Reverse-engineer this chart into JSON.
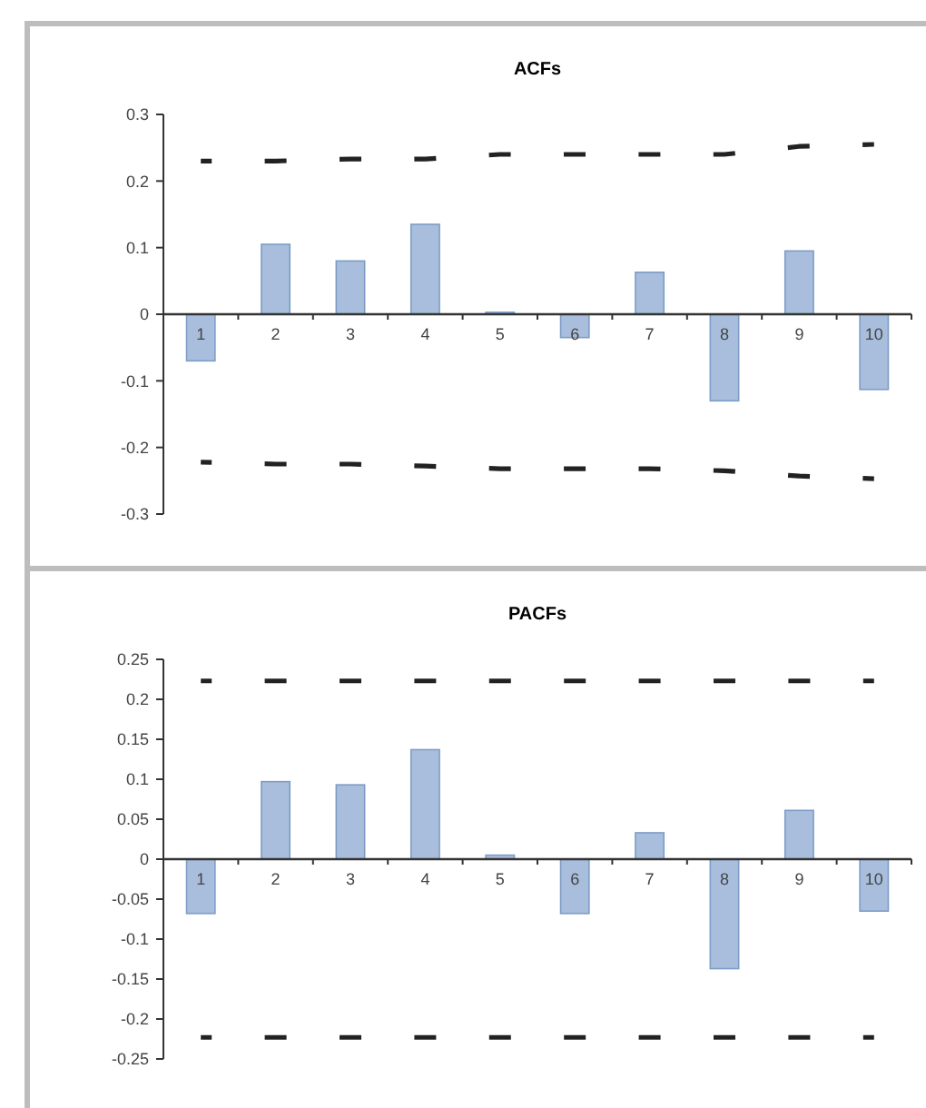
{
  "chart_data": [
    {
      "type": "bar",
      "title": "ACFs",
      "categories": [
        "1",
        "2",
        "3",
        "4",
        "5",
        "6",
        "7",
        "8",
        "9",
        "10"
      ],
      "series": [
        {
          "color": "#a8bedc",
          "values": [
            -0.07,
            0.105,
            0.08,
            0.135,
            0.003,
            -0.035,
            0.063,
            -0.13,
            0.095,
            -0.113
          ]
        },
        {
          "type": "line",
          "line_style": "dashed",
          "marker": "none",
          "color": "#222222",
          "values": [
            0.23,
            0.23,
            0.233,
            0.233,
            0.24,
            0.24,
            0.24,
            0.24,
            0.252,
            0.255
          ]
        },
        {
          "type": "line",
          "line_style": "dashed",
          "marker": "none",
          "color": "#222222",
          "values": [
            -0.222,
            -0.225,
            -0.225,
            -0.228,
            -0.232,
            -0.232,
            -0.232,
            -0.235,
            -0.243,
            -0.247
          ]
        }
      ],
      "ylim": [
        -0.3,
        0.3
      ],
      "yticks": [
        -0.3,
        -0.2,
        -0.1,
        0,
        0.1,
        0.2,
        0.3
      ],
      "grid": false
    },
    {
      "type": "bar",
      "title": "PACFs",
      "categories": [
        "1",
        "2",
        "3",
        "4",
        "5",
        "6",
        "7",
        "8",
        "9",
        "10"
      ],
      "series": [
        {
          "color": "#a8bedc",
          "values": [
            -0.068,
            0.097,
            0.093,
            0.137,
            0.005,
            -0.068,
            0.033,
            -0.137,
            0.061,
            -0.065
          ]
        },
        {
          "type": "line",
          "line_style": "dashed",
          "marker": "none",
          "color": "#222222",
          "values": [
            0.223,
            0.223,
            0.223,
            0.223,
            0.223,
            0.223,
            0.223,
            0.223,
            0.223,
            0.223
          ]
        },
        {
          "type": "line",
          "line_style": "dashed",
          "marker": "none",
          "color": "#222222",
          "values": [
            -0.223,
            -0.223,
            -0.223,
            -0.223,
            -0.223,
            -0.223,
            -0.223,
            -0.223,
            -0.223,
            -0.223
          ]
        }
      ],
      "ylim": [
        -0.25,
        0.25
      ],
      "yticks": [
        -0.25,
        -0.2,
        -0.15,
        -0.1,
        -0.05,
        0,
        0.05,
        0.1,
        0.15,
        0.2,
        0.25
      ],
      "grid": false
    }
  ]
}
